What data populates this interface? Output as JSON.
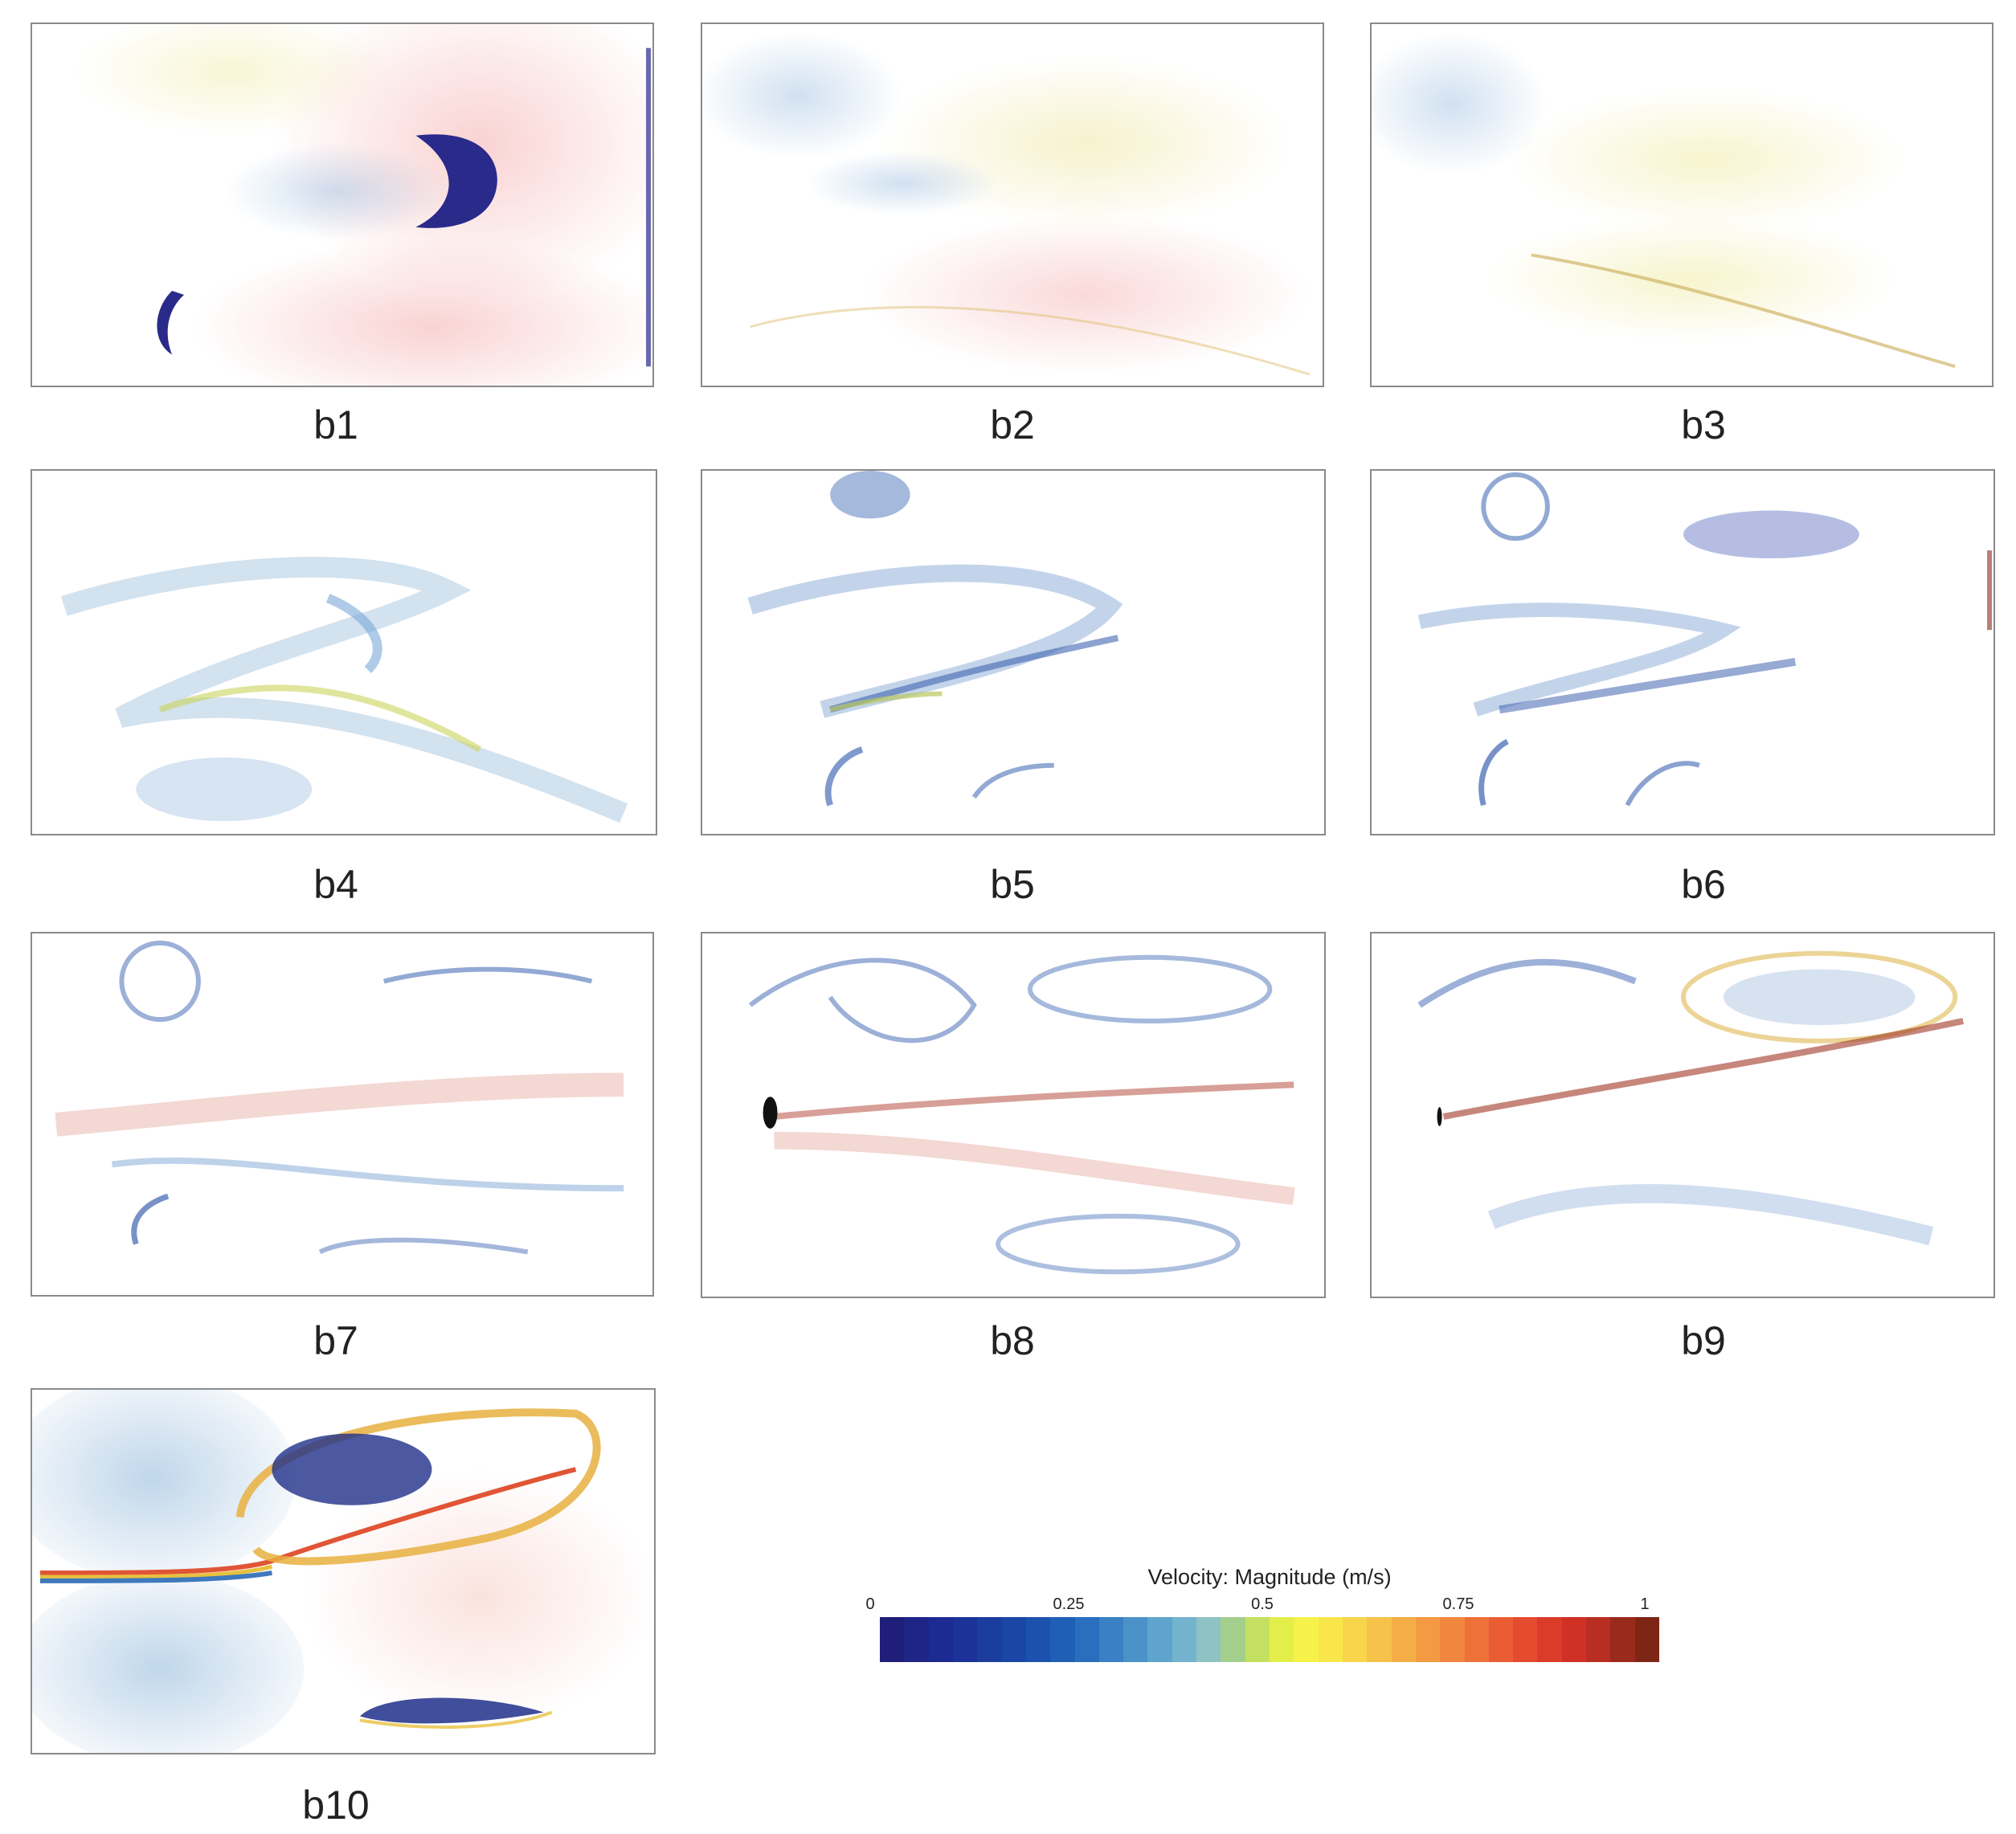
{
  "panels": [
    {
      "id": "b1",
      "label": "b1"
    },
    {
      "id": "b2",
      "label": "b2"
    },
    {
      "id": "b3",
      "label": "b3"
    },
    {
      "id": "b4",
      "label": "b4"
    },
    {
      "id": "b5",
      "label": "b5"
    },
    {
      "id": "b6",
      "label": "b6"
    },
    {
      "id": "b7",
      "label": "b7"
    },
    {
      "id": "b8",
      "label": "b8"
    },
    {
      "id": "b9",
      "label": "b9"
    },
    {
      "id": "b10",
      "label": "b10"
    }
  ],
  "colorbar": {
    "title": "Velocity: Magnitude (m/s)",
    "ticks": [
      "0",
      "0.25",
      "0.5",
      "0.75",
      "1"
    ],
    "colors": [
      "#1f1f7a",
      "#1e2586",
      "#1c2b92",
      "#1b3398",
      "#1a3d9e",
      "#1a47a6",
      "#1c52ae",
      "#1f5fb6",
      "#2a6fbe",
      "#3a80c4",
      "#4b92c8",
      "#5fa4cc",
      "#74b3cd",
      "#8fc2c3",
      "#a3cf8c",
      "#c4e060",
      "#e3ee4a",
      "#f6f24a",
      "#f9e64b",
      "#f8d54b",
      "#f7c24a",
      "#f5ae47",
      "#f39a43",
      "#f1863e",
      "#ee7139",
      "#ea5d34",
      "#e54b2f",
      "#dd3b2a",
      "#cf3125",
      "#b92e22",
      "#9a2a1c",
      "#7d2616"
    ]
  }
}
